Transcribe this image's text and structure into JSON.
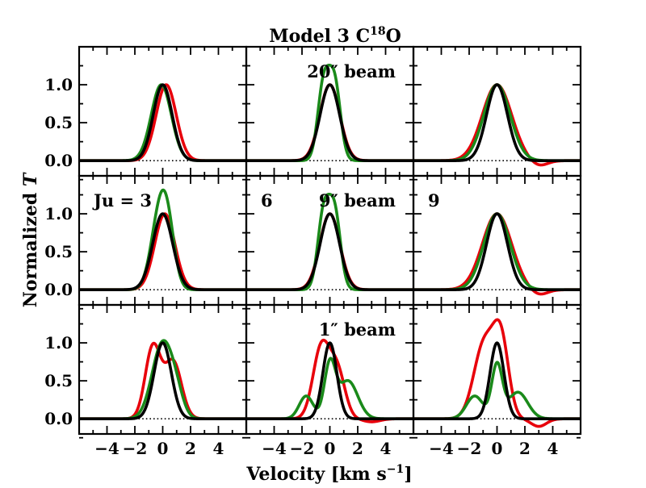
{
  "chart_data": {
    "type": "line",
    "title": "Model 3 C",
    "title_isotope_sup": "18",
    "title_suffix": "O",
    "xlabel": "Velocity [km s",
    "xlabel_sup": "−1",
    "xlabel_close": "]",
    "ylabel": "Normalized ",
    "ylabel_italic": "T",
    "xlim": [
      -6,
      6
    ],
    "ylim": [
      -0.2,
      1.5
    ],
    "xticks": [
      "−4",
      "−2",
      "0",
      "2",
      "4"
    ],
    "xtick_values": [
      -4,
      -2,
      0,
      2,
      4
    ],
    "yticks": [
      "0.0",
      "0.5",
      "1.0"
    ],
    "ytick_values": [
      0,
      0.5,
      1.0
    ],
    "rows": [
      {
        "beam_label": "20″ beam"
      },
      {
        "beam_label": "9″ beam"
      },
      {
        "beam_label": "1″ beam"
      }
    ],
    "columns": [
      {
        "Ju": 3,
        "corner_label": "Ju = 3"
      },
      {
        "Ju": 6,
        "corner_label": "6"
      },
      {
        "Ju": 9,
        "corner_label": "9"
      }
    ],
    "series_colors": {
      "red": "#e8000b",
      "green": "#1a8a1a",
      "black": "#000000"
    },
    "panels": [
      [
        {
          "series": [
            {
              "name": "red",
              "components": [
                {
                  "a": 1.0,
                  "mu": 0.25,
                  "sigma": 0.72
                }
              ]
            },
            {
              "name": "green",
              "components": [
                {
                  "a": 1.0,
                  "mu": -0.1,
                  "sigma": 0.72
                }
              ]
            },
            {
              "name": "black",
              "components": [
                {
                  "a": 1.0,
                  "mu": 0.0,
                  "sigma": 0.68
                }
              ]
            }
          ]
        },
        {
          "series": [
            {
              "name": "red",
              "components": [
                {
                  "a": 1.0,
                  "mu": 0.0,
                  "sigma": 0.72
                }
              ]
            },
            {
              "name": "green",
              "components": [
                {
                  "a": 0.99,
                  "mu": -0.45,
                  "sigma": 0.42
                },
                {
                  "a": 0.99,
                  "mu": 0.35,
                  "sigma": 0.42
                }
              ]
            },
            {
              "name": "black",
              "components": [
                {
                  "a": 1.0,
                  "mu": 0.0,
                  "sigma": 0.7
                }
              ]
            }
          ]
        },
        {
          "series": [
            {
              "name": "red",
              "components": [
                {
                  "a": 1.0,
                  "mu": 0.0,
                  "sigma": 1.05
                },
                {
                  "a": -0.07,
                  "mu": 3.0,
                  "sigma": 0.6
                }
              ]
            },
            {
              "name": "green",
              "components": [
                {
                  "a": 1.0,
                  "mu": 0.0,
                  "sigma": 0.95
                }
              ]
            },
            {
              "name": "black",
              "components": [
                {
                  "a": 1.0,
                  "mu": 0.0,
                  "sigma": 0.75
                }
              ]
            }
          ]
        }
      ],
      [
        {
          "series": [
            {
              "name": "red",
              "components": [
                {
                  "a": 1.0,
                  "mu": 0.15,
                  "sigma": 0.72
                }
              ]
            },
            {
              "name": "green",
              "components": [
                {
                  "a": 1.0,
                  "mu": -0.2,
                  "sigma": 0.62
                },
                {
                  "a": 0.5,
                  "mu": 0.4,
                  "sigma": 0.5
                }
              ]
            },
            {
              "name": "black",
              "components": [
                {
                  "a": 1.0,
                  "mu": 0.0,
                  "sigma": 0.72
                }
              ]
            }
          ]
        },
        {
          "series": [
            {
              "name": "red",
              "components": [
                {
                  "a": 1.0,
                  "mu": 0.0,
                  "sigma": 0.72
                }
              ]
            },
            {
              "name": "green",
              "components": [
                {
                  "a": 0.99,
                  "mu": -0.45,
                  "sigma": 0.42
                },
                {
                  "a": 0.99,
                  "mu": 0.35,
                  "sigma": 0.42
                }
              ]
            },
            {
              "name": "black",
              "components": [
                {
                  "a": 1.0,
                  "mu": 0.0,
                  "sigma": 0.7
                }
              ]
            }
          ]
        },
        {
          "series": [
            {
              "name": "red",
              "components": [
                {
                  "a": 1.0,
                  "mu": 0.0,
                  "sigma": 1.05
                },
                {
                  "a": -0.07,
                  "mu": 3.0,
                  "sigma": 0.6
                }
              ]
            },
            {
              "name": "green",
              "components": [
                {
                  "a": 1.0,
                  "mu": 0.0,
                  "sigma": 0.95
                }
              ]
            },
            {
              "name": "black",
              "components": [
                {
                  "a": 1.0,
                  "mu": 0.0,
                  "sigma": 0.75
                }
              ]
            }
          ]
        }
      ],
      [
        {
          "series": [
            {
              "name": "red",
              "components": [
                {
                  "a": 0.95,
                  "mu": -0.7,
                  "sigma": 0.55
                },
                {
                  "a": 0.75,
                  "mu": 0.75,
                  "sigma": 0.6
                }
              ]
            },
            {
              "name": "green",
              "components": [
                {
                  "a": 1.0,
                  "mu": 0.0,
                  "sigma": 0.75
                },
                {
                  "a": 0.2,
                  "mu": 1.0,
                  "sigma": 0.5
                }
              ]
            },
            {
              "name": "black",
              "components": [
                {
                  "a": 1.0,
                  "mu": 0.0,
                  "sigma": 0.62
                }
              ]
            }
          ]
        },
        {
          "series": [
            {
              "name": "red",
              "components": [
                {
                  "a": 0.95,
                  "mu": -0.6,
                  "sigma": 0.6
                },
                {
                  "a": 0.6,
                  "mu": 0.55,
                  "sigma": 0.55
                },
                {
                  "a": -0.04,
                  "mu": 3.0,
                  "sigma": 0.6
                }
              ]
            },
            {
              "name": "green",
              "components": [
                {
                  "a": 0.7,
                  "mu": 0.0,
                  "sigma": 0.4
                },
                {
                  "a": 0.3,
                  "mu": -1.7,
                  "sigma": 0.5
                },
                {
                  "a": 0.5,
                  "mu": 1.3,
                  "sigma": 0.7
                }
              ]
            },
            {
              "name": "black",
              "components": [
                {
                  "a": 1.0,
                  "mu": 0.0,
                  "sigma": 0.5
                }
              ]
            }
          ]
        },
        {
          "series": [
            {
              "name": "red",
              "components": [
                {
                  "a": 1.0,
                  "mu": -0.9,
                  "sigma": 0.75
                },
                {
                  "a": 0.95,
                  "mu": 0.3,
                  "sigma": 0.55
                },
                {
                  "a": -0.1,
                  "mu": 3.0,
                  "sigma": 0.55
                }
              ]
            },
            {
              "name": "green",
              "components": [
                {
                  "a": 0.7,
                  "mu": 0.0,
                  "sigma": 0.38
                },
                {
                  "a": 0.3,
                  "mu": -1.6,
                  "sigma": 0.6
                },
                {
                  "a": 0.35,
                  "mu": 1.5,
                  "sigma": 0.7
                }
              ]
            },
            {
              "name": "black",
              "components": [
                {
                  "a": 1.0,
                  "mu": 0.0,
                  "sigma": 0.5
                }
              ]
            }
          ]
        }
      ]
    ]
  }
}
